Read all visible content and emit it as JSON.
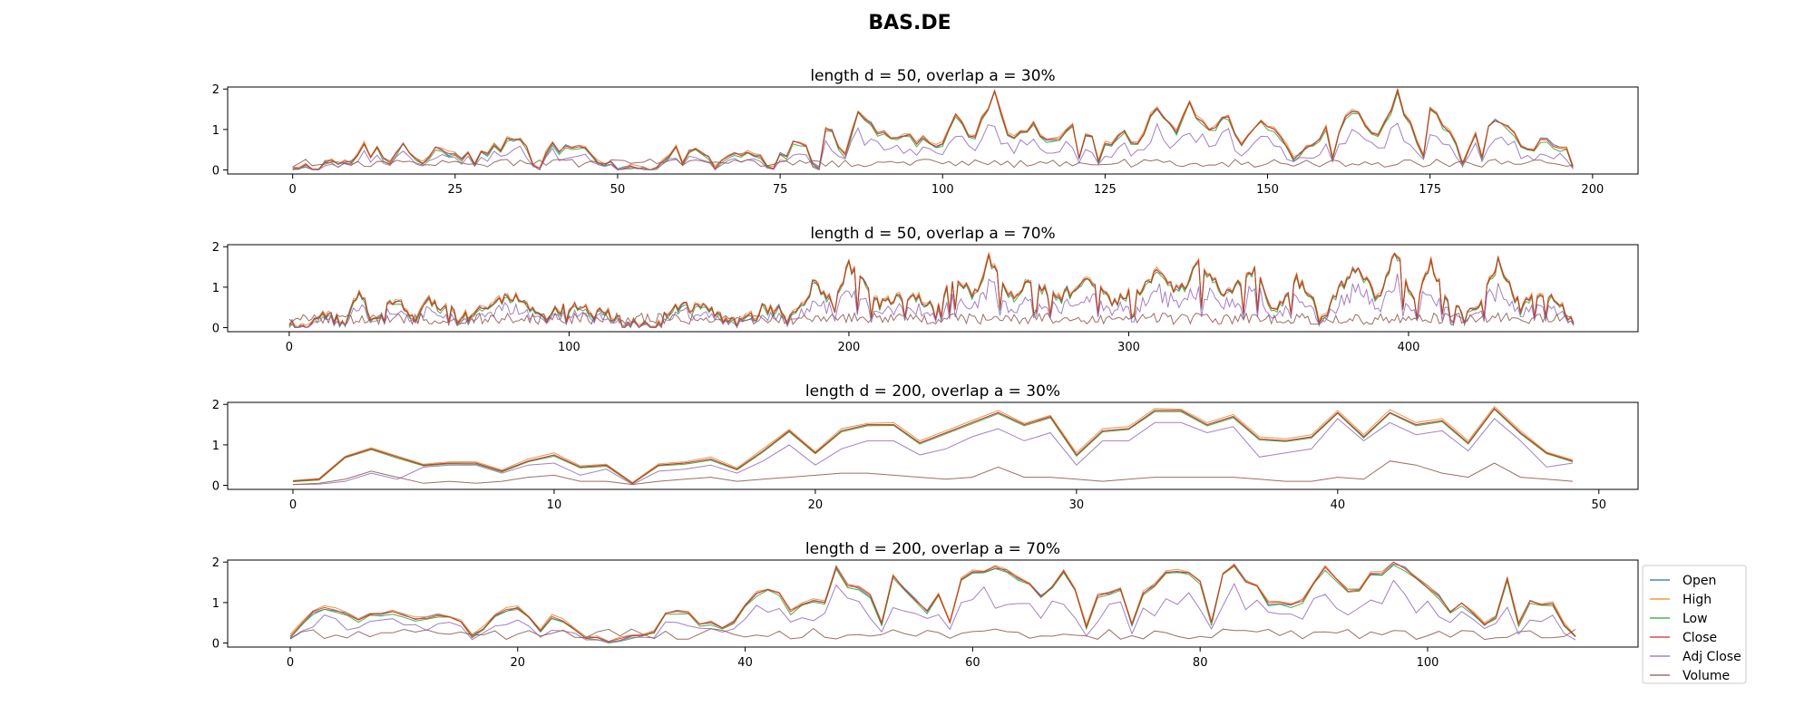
{
  "figure": {
    "title": "BAS.DE"
  },
  "colors": {
    "Open": "#1f77b4",
    "High": "#ff7f0e",
    "Low": "#2ca02c",
    "Close": "#d62728",
    "Adj Close": "#9467bd",
    "Volume": "#8c564b"
  },
  "legend": {
    "placement": "right of last panel",
    "entries": [
      "Open",
      "High",
      "Low",
      "Close",
      "Adj Close",
      "Volume"
    ]
  },
  "chart_data": [
    {
      "type": "line",
      "title": "length d = 50, overlap a = 30%",
      "xlim": [
        -10,
        207
      ],
      "ylim": [
        -0.1,
        2.05
      ],
      "xticks": [
        0,
        25,
        50,
        75,
        100,
        125,
        150,
        175,
        200
      ],
      "yticks": [
        0,
        1,
        2
      ],
      "n_points": 198,
      "envelope": [
        [
          0,
          0.02
        ],
        [
          3,
          0.05
        ],
        [
          6,
          0.25
        ],
        [
          9,
          0.05
        ],
        [
          12,
          0.9
        ],
        [
          15,
          0.05
        ],
        [
          17,
          0.7
        ],
        [
          20,
          0.1
        ],
        [
          22,
          0.7
        ],
        [
          26,
          0.3
        ],
        [
          30,
          0.5
        ],
        [
          35,
          0.75
        ],
        [
          38,
          0.1
        ],
        [
          40,
          0.55
        ],
        [
          45,
          0.45
        ],
        [
          50,
          0.1
        ],
        [
          55,
          0.05
        ],
        [
          58,
          0.45
        ],
        [
          62,
          0.55
        ],
        [
          65,
          0.1
        ],
        [
          70,
          0.55
        ],
        [
          74,
          0.1
        ],
        [
          78,
          0.75
        ],
        [
          81,
          0.2
        ],
        [
          82,
          1.15
        ],
        [
          85,
          0.4
        ],
        [
          87,
          1.35
        ],
        [
          92,
          0.7
        ],
        [
          96,
          0.75
        ],
        [
          100,
          0.55
        ],
        [
          102,
          1.35
        ],
        [
          105,
          0.8
        ],
        [
          108,
          1.85
        ],
        [
          110,
          0.8
        ],
        [
          114,
          1.05
        ],
        [
          117,
          0.7
        ],
        [
          120,
          1.1
        ],
        [
          124,
          0.6
        ],
        [
          128,
          0.85
        ],
        [
          130,
          0.65
        ],
        [
          133,
          1.55
        ],
        [
          136,
          1.0
        ],
        [
          138,
          1.55
        ],
        [
          141,
          0.9
        ],
        [
          143,
          1.4
        ],
        [
          146,
          0.75
        ],
        [
          150,
          1.2
        ],
        [
          154,
          0.3
        ],
        [
          158,
          0.9
        ],
        [
          161,
          0.95
        ],
        [
          163,
          1.5
        ],
        [
          167,
          0.9
        ],
        [
          170,
          1.9
        ],
        [
          173,
          0.6
        ],
        [
          175,
          1.55
        ],
        [
          180,
          0.4
        ],
        [
          185,
          1.35
        ],
        [
          190,
          0.5
        ],
        [
          193,
          0.75
        ],
        [
          196,
          0.45
        ],
        [
          197,
          0.05
        ]
      ],
      "volume_level": 0.15
    },
    {
      "type": "line",
      "title": "length d = 50, overlap a = 70%",
      "xlim": [
        -22,
        482
      ],
      "ylim": [
        -0.1,
        2.05
      ],
      "xticks": [
        0,
        100,
        200,
        300,
        400
      ],
      "yticks": [
        0,
        1,
        2
      ],
      "n_points": 460,
      "envelope": [
        [
          0,
          0.02
        ],
        [
          8,
          0.05
        ],
        [
          12,
          0.3
        ],
        [
          20,
          0.1
        ],
        [
          25,
          1.0
        ],
        [
          30,
          0.1
        ],
        [
          38,
          0.7
        ],
        [
          45,
          0.15
        ],
        [
          50,
          0.7
        ],
        [
          60,
          0.3
        ],
        [
          70,
          0.5
        ],
        [
          80,
          0.75
        ],
        [
          90,
          0.2
        ],
        [
          100,
          0.55
        ],
        [
          110,
          0.45
        ],
        [
          120,
          0.1
        ],
        [
          130,
          0.05
        ],
        [
          140,
          0.55
        ],
        [
          150,
          0.45
        ],
        [
          160,
          0.2
        ],
        [
          170,
          0.5
        ],
        [
          180,
          0.3
        ],
        [
          188,
          1.15
        ],
        [
          195,
          0.5
        ],
        [
          200,
          1.55
        ],
        [
          210,
          0.6
        ],
        [
          220,
          0.8
        ],
        [
          232,
          0.6
        ],
        [
          238,
          1.35
        ],
        [
          245,
          0.8
        ],
        [
          250,
          1.75
        ],
        [
          258,
          0.8
        ],
        [
          265,
          1.1
        ],
        [
          275,
          0.7
        ],
        [
          285,
          1.2
        ],
        [
          295,
          0.6
        ],
        [
          305,
          1.0
        ],
        [
          310,
          1.4
        ],
        [
          318,
          0.9
        ],
        [
          325,
          1.55
        ],
        [
          335,
          0.8
        ],
        [
          345,
          1.4
        ],
        [
          352,
          0.4
        ],
        [
          360,
          1.2
        ],
        [
          370,
          0.3
        ],
        [
          380,
          1.5
        ],
        [
          390,
          0.7
        ],
        [
          395,
          1.9
        ],
        [
          402,
          0.6
        ],
        [
          408,
          1.6
        ],
        [
          415,
          0.4
        ],
        [
          425,
          0.5
        ],
        [
          432,
          1.6
        ],
        [
          440,
          0.5
        ],
        [
          448,
          0.85
        ],
        [
          455,
          0.5
        ],
        [
          459,
          0.05
        ]
      ],
      "volume_level": 0.2
    },
    {
      "type": "line",
      "title": "length d = 200, overlap a = 30%",
      "xlim": [
        -2.5,
        51.5
      ],
      "ylim": [
        -0.1,
        2.05
      ],
      "xticks": [
        0,
        10,
        20,
        30,
        40,
        50
      ],
      "yticks": [
        0,
        1,
        2
      ],
      "n_points": 50,
      "x": [
        0,
        1,
        2,
        3,
        4,
        5,
        6,
        7,
        8,
        9,
        10,
        11,
        12,
        13,
        14,
        15,
        16,
        17,
        18,
        19,
        20,
        21,
        22,
        23,
        24,
        25,
        26,
        27,
        28,
        29,
        30,
        31,
        32,
        33,
        34,
        35,
        36,
        37,
        38,
        39,
        40,
        41,
        42,
        43,
        44,
        45,
        46,
        47,
        48,
        49
      ],
      "series": [
        {
          "name": "Open",
          "values": [
            0.1,
            0.15,
            0.7,
            0.9,
            0.7,
            0.5,
            0.55,
            0.55,
            0.35,
            0.6,
            0.75,
            0.45,
            0.5,
            0.05,
            0.5,
            0.55,
            0.65,
            0.4,
            0.85,
            1.35,
            0.8,
            1.35,
            1.5,
            1.5,
            1.05,
            1.3,
            1.55,
            1.8,
            1.5,
            1.7,
            0.75,
            1.35,
            1.4,
            1.85,
            1.85,
            1.5,
            1.7,
            1.15,
            1.1,
            1.2,
            1.8,
            1.2,
            1.8,
            1.5,
            1.6,
            1.05,
            1.9,
            1.3,
            0.8,
            0.6
          ]
        },
        {
          "name": "High",
          "values": [
            0.12,
            0.17,
            0.72,
            0.93,
            0.72,
            0.52,
            0.58,
            0.58,
            0.38,
            0.65,
            0.8,
            0.48,
            0.52,
            0.07,
            0.53,
            0.58,
            0.7,
            0.43,
            0.9,
            1.38,
            0.83,
            1.4,
            1.53,
            1.55,
            1.1,
            1.35,
            1.6,
            1.85,
            1.53,
            1.73,
            0.8,
            1.4,
            1.45,
            1.9,
            1.88,
            1.55,
            1.75,
            1.2,
            1.15,
            1.25,
            1.85,
            1.25,
            1.87,
            1.55,
            1.65,
            1.1,
            1.95,
            1.35,
            0.82,
            0.63
          ]
        },
        {
          "name": "Low",
          "values": [
            0.09,
            0.13,
            0.68,
            0.88,
            0.67,
            0.48,
            0.53,
            0.52,
            0.33,
            0.58,
            0.72,
            0.43,
            0.47,
            0.04,
            0.48,
            0.52,
            0.62,
            0.38,
            0.82,
            1.32,
            0.78,
            1.32,
            1.47,
            1.48,
            1.02,
            1.27,
            1.52,
            1.77,
            1.47,
            1.67,
            0.72,
            1.32,
            1.38,
            1.82,
            1.82,
            1.47,
            1.67,
            1.12,
            1.08,
            1.17,
            1.78,
            1.17,
            1.78,
            1.47,
            1.57,
            1.02,
            1.88,
            1.27,
            0.78,
            0.58
          ]
        },
        {
          "name": "Close",
          "values": [
            0.11,
            0.15,
            0.7,
            0.9,
            0.7,
            0.5,
            0.55,
            0.55,
            0.35,
            0.6,
            0.75,
            0.45,
            0.5,
            0.05,
            0.5,
            0.55,
            0.65,
            0.4,
            0.85,
            1.35,
            0.8,
            1.35,
            1.5,
            1.5,
            1.05,
            1.3,
            1.55,
            1.8,
            1.5,
            1.7,
            0.75,
            1.35,
            1.4,
            1.85,
            1.85,
            1.5,
            1.7,
            1.15,
            1.1,
            1.2,
            1.8,
            1.2,
            1.8,
            1.5,
            1.6,
            1.05,
            1.9,
            1.3,
            0.8,
            0.6
          ]
        },
        {
          "name": "Adj Close",
          "values": [
            0.02,
            0.03,
            0.1,
            0.3,
            0.15,
            0.45,
            0.5,
            0.5,
            0.3,
            0.5,
            0.55,
            0.25,
            0.4,
            0.02,
            0.35,
            0.4,
            0.5,
            0.3,
            0.6,
            1.0,
            0.5,
            0.9,
            1.1,
            1.1,
            0.75,
            0.9,
            1.2,
            1.4,
            1.1,
            1.3,
            0.5,
            1.1,
            1.1,
            1.55,
            1.55,
            1.3,
            1.45,
            0.7,
            0.8,
            0.9,
            1.65,
            1.1,
            1.55,
            1.25,
            1.35,
            0.85,
            1.65,
            1.1,
            0.45,
            0.55
          ]
        },
        {
          "name": "Volume",
          "values": [
            0.02,
            0.05,
            0.15,
            0.35,
            0.2,
            0.05,
            0.1,
            0.05,
            0.1,
            0.2,
            0.25,
            0.1,
            0.1,
            0.02,
            0.1,
            0.15,
            0.2,
            0.1,
            0.15,
            0.2,
            0.25,
            0.3,
            0.3,
            0.25,
            0.2,
            0.15,
            0.2,
            0.45,
            0.2,
            0.2,
            0.15,
            0.1,
            0.15,
            0.2,
            0.2,
            0.2,
            0.2,
            0.15,
            0.1,
            0.1,
            0.2,
            0.15,
            0.6,
            0.5,
            0.3,
            0.2,
            0.55,
            0.2,
            0.15,
            0.1
          ]
        }
      ]
    },
    {
      "type": "line",
      "title": "length d = 200, overlap a = 70%",
      "xlim": [
        -5.5,
        118.5
      ],
      "ylim": [
        -0.1,
        2.05
      ],
      "xticks": [
        0,
        20,
        40,
        60,
        80,
        100
      ],
      "yticks": [
        0,
        1,
        2
      ],
      "n_points": 114,
      "envelope": [
        [
          0,
          0.1
        ],
        [
          2,
          0.7
        ],
        [
          4,
          0.88
        ],
        [
          6,
          0.5
        ],
        [
          8,
          0.75
        ],
        [
          11,
          0.55
        ],
        [
          13,
          0.62
        ],
        [
          16,
          0.3
        ],
        [
          18,
          0.7
        ],
        [
          22,
          0.8
        ],
        [
          24,
          0.45
        ],
        [
          28,
          0.05
        ],
        [
          30,
          0.2
        ],
        [
          32,
          0.8
        ],
        [
          35,
          0.65
        ],
        [
          38,
          0.35
        ],
        [
          42,
          1.4
        ],
        [
          44,
          0.8
        ],
        [
          47,
          1.05
        ],
        [
          48,
          1.75
        ],
        [
          51,
          1.1
        ],
        [
          53,
          1.6
        ],
        [
          56,
          0.85
        ],
        [
          58,
          1.45
        ],
        [
          62,
          1.85
        ],
        [
          64,
          1.6
        ],
        [
          66,
          1.25
        ],
        [
          68,
          1.8
        ],
        [
          70,
          1.0
        ],
        [
          73,
          1.35
        ],
        [
          75,
          1.15
        ],
        [
          78,
          1.85
        ],
        [
          81,
          1.4
        ],
        [
          83,
          1.85
        ],
        [
          86,
          1.05
        ],
        [
          89,
          1.1
        ],
        [
          91,
          1.95
        ],
        [
          93,
          1.25
        ],
        [
          95,
          1.6
        ],
        [
          97,
          2.0
        ],
        [
          99,
          1.65
        ],
        [
          102,
          0.9
        ],
        [
          104,
          0.85
        ],
        [
          106,
          1.9
        ],
        [
          109,
          1.1
        ],
        [
          111,
          0.9
        ],
        [
          113,
          0.05
        ]
      ],
      "volume_level": 0.2
    }
  ]
}
